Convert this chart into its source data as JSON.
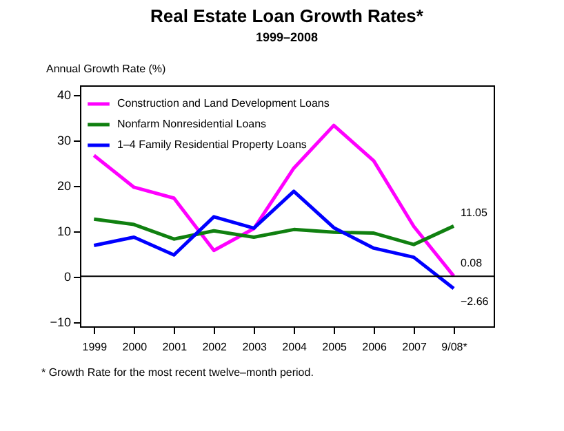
{
  "chart_data": {
    "type": "line",
    "title": "Real Estate Loan Growth Rates*",
    "subtitle": "1999–2008",
    "ylabel": "Annual Growth Rate (%)",
    "categories": [
      "1999",
      "2000",
      "2001",
      "2002",
      "2003",
      "2004",
      "2005",
      "2006",
      "2007",
      "9/08*"
    ],
    "series": [
      {
        "name": "Construction and Land Development Loans",
        "color": "#ff00ff",
        "values": [
          26.6,
          19.6,
          17.2,
          5.7,
          10.5,
          23.8,
          33.2,
          25.4,
          11.0,
          0.08
        ],
        "value_labels": [
          null,
          null,
          null,
          null,
          null,
          null,
          null,
          null,
          null,
          "0.08"
        ]
      },
      {
        "name": "Nonfarm Nonresidential Loans",
        "color": "#108010",
        "values": [
          12.6,
          11.4,
          8.2,
          10.0,
          8.6,
          10.3,
          9.7,
          9.5,
          7.0,
          11.05
        ],
        "value_labels": [
          null,
          null,
          null,
          null,
          null,
          null,
          null,
          null,
          null,
          "11.05"
        ]
      },
      {
        "name": "1–4 Family Residential Property Loans",
        "color": "#0000ff",
        "values": [
          6.8,
          8.6,
          4.7,
          13.1,
          10.6,
          18.7,
          10.7,
          6.2,
          4.2,
          -2.66
        ],
        "value_labels": [
          null,
          null,
          null,
          null,
          null,
          null,
          null,
          null,
          null,
          "−2.66"
        ]
      }
    ],
    "ylim": [
      -11,
      42
    ],
    "yticks": [
      -10,
      0,
      10,
      20,
      30,
      40
    ],
    "ref_lines": [
      {
        "axis": "y",
        "value": 0
      }
    ],
    "annotations": [
      "* Growth Rate for the most recent twelve–month period."
    ],
    "legend": "top left",
    "grid": false,
    "marker": "none",
    "line_style": "solid"
  }
}
